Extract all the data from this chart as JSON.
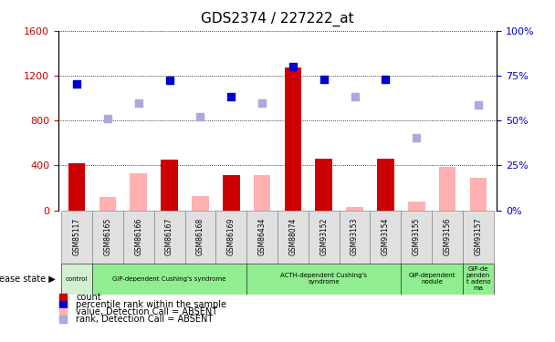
{
  "title": "GDS2374 / 227222_at",
  "samples": [
    "GSM85117",
    "GSM86165",
    "GSM86166",
    "GSM86167",
    "GSM86168",
    "GSM86169",
    "GSM86434",
    "GSM88074",
    "GSM93152",
    "GSM93153",
    "GSM93154",
    "GSM93155",
    "GSM93156",
    "GSM93157"
  ],
  "count_values": [
    420,
    null,
    null,
    450,
    null,
    310,
    null,
    1270,
    460,
    null,
    460,
    null,
    null,
    null
  ],
  "count_absent_values": [
    null,
    120,
    330,
    null,
    130,
    null,
    310,
    null,
    null,
    30,
    null,
    80,
    390,
    290
  ],
  "rank_values": [
    1130,
    null,
    null,
    1160,
    null,
    1010,
    null,
    1280,
    1170,
    null,
    1170,
    null,
    null,
    null
  ],
  "rank_absent_values": [
    null,
    820,
    960,
    null,
    830,
    null,
    960,
    null,
    null,
    1010,
    null,
    650,
    null,
    940
  ],
  "ylim_left": [
    0,
    1600
  ],
  "ylim_right": [
    0,
    100
  ],
  "yticks_left": [
    0,
    400,
    800,
    1200,
    1600
  ],
  "yticks_right": [
    0,
    25,
    50,
    75,
    100
  ],
  "disease_groups": [
    {
      "label": "control",
      "start": 0,
      "end": 1,
      "color": "#d0f0d0"
    },
    {
      "label": "GIP-dependent Cushing's syndrome",
      "start": 1,
      "end": 6,
      "color": "#90ee90"
    },
    {
      "label": "ACTH-dependent Cushing's\nsyndrome",
      "start": 6,
      "end": 11,
      "color": "#90ee90"
    },
    {
      "label": "GIP-dependent\nnodule",
      "start": 11,
      "end": 13,
      "color": "#90ee90"
    },
    {
      "label": "GIP-de\npenden\nt adeno\nma",
      "start": 13,
      "end": 14,
      "color": "#90ee90"
    }
  ],
  "count_color": "#cc0000",
  "count_absent_color": "#ffb0b0",
  "rank_color": "#0000cc",
  "rank_absent_color": "#aaaadd",
  "bg_color": "#ffffff",
  "legend_items": [
    {
      "label": "count",
      "color": "#cc0000"
    },
    {
      "label": "percentile rank within the sample",
      "color": "#0000cc"
    },
    {
      "label": "value, Detection Call = ABSENT",
      "color": "#ffb0b0"
    },
    {
      "label": "rank, Detection Call = ABSENT",
      "color": "#aaaadd"
    }
  ]
}
